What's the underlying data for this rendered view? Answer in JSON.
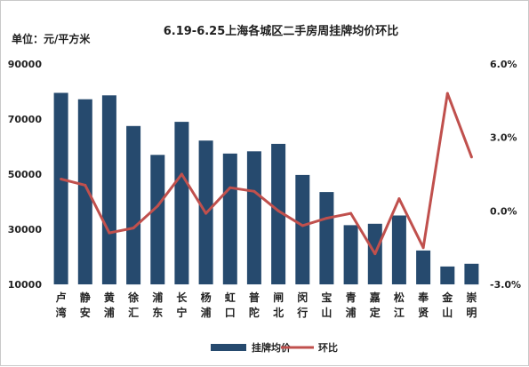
{
  "chart_data": {
    "type": "bar+line",
    "title": "6.19-6.25上海各城区二手房周挂牌均价环比",
    "unit_label": "单位：元/平方米",
    "categories": [
      [
        "卢",
        "湾"
      ],
      [
        "静",
        "安"
      ],
      [
        "黄",
        "浦"
      ],
      [
        "徐",
        "汇"
      ],
      [
        "浦",
        "东"
      ],
      [
        "长",
        "宁"
      ],
      [
        "杨",
        "浦"
      ],
      [
        "虹",
        "口"
      ],
      [
        "普",
        "陀"
      ],
      [
        "闸",
        "北"
      ],
      [
        "闵",
        "行"
      ],
      [
        "宝",
        "山"
      ],
      [
        "青",
        "浦"
      ],
      [
        "嘉",
        "定"
      ],
      [
        "松",
        "江"
      ],
      [
        "奉",
        "贤"
      ],
      [
        "金",
        "山"
      ],
      [
        "崇",
        "明"
      ]
    ],
    "left_axis": {
      "min": 10000,
      "max": 90000,
      "ticks": [
        "10000",
        "30000",
        "50000",
        "70000",
        "90000"
      ]
    },
    "right_axis": {
      "min": -3.0,
      "max": 6.0,
      "ticks": [
        "-3.0%",
        "0.0%",
        "3.0%",
        "6.0%"
      ]
    },
    "series": [
      {
        "name": "挂牌均价",
        "type": "bar",
        "axis": "left",
        "color": "#264a6e",
        "values": [
          79500,
          77200,
          78600,
          67500,
          57000,
          69000,
          62200,
          57500,
          58300,
          61000,
          49700,
          43500,
          31500,
          32000,
          35000,
          22300,
          16500,
          17500
        ]
      },
      {
        "name": "环比",
        "type": "line",
        "axis": "right",
        "color": "#c0504d",
        "values": [
          1.3,
          1.05,
          -0.9,
          -0.7,
          0.2,
          1.5,
          -0.1,
          0.95,
          0.8,
          0.0,
          -0.6,
          -0.3,
          -0.1,
          -1.75,
          0.5,
          -1.5,
          4.8,
          2.2
        ]
      }
    ],
    "legend_position": "bottom"
  }
}
